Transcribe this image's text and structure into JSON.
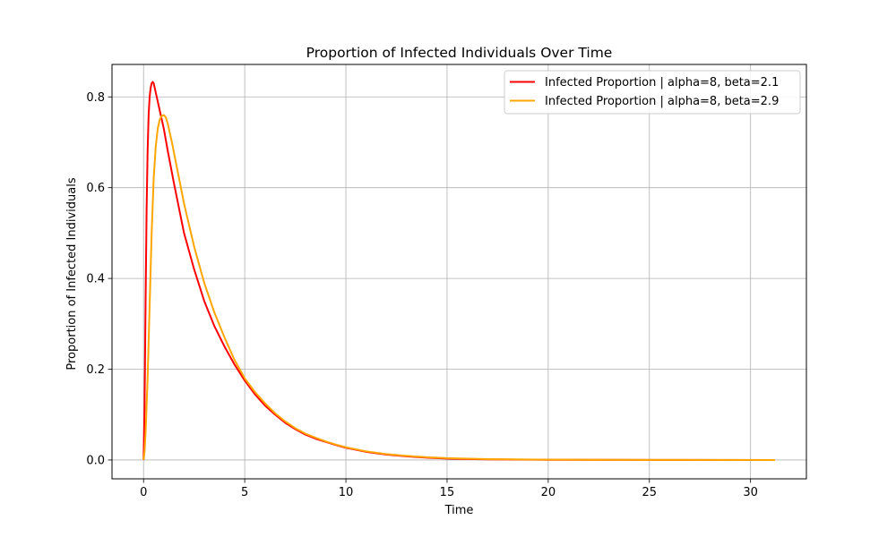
{
  "chart_data": {
    "type": "line",
    "title": "Proportion of Infected Individuals Over Time",
    "xlabel": "Time",
    "ylabel": "Proportion of Infected Individuals",
    "xlim": [
      -1.56,
      32.76
    ],
    "ylim": [
      -0.0415,
      0.8715
    ],
    "xticks": [
      0,
      5,
      10,
      15,
      20,
      25,
      30
    ],
    "yticks": [
      0.0,
      0.2,
      0.4,
      0.6,
      0.8
    ],
    "xtick_labels": [
      "0",
      "5",
      "10",
      "15",
      "20",
      "25",
      "30"
    ],
    "ytick_labels": [
      "0.0",
      "0.2",
      "0.4",
      "0.6",
      "0.8"
    ],
    "grid": true,
    "legend_position": "top-right",
    "series": [
      {
        "name": "Infected Proportion | alpha=8, beta=2.1",
        "color": "#ff0000",
        "x": [
          0,
          0.05,
          0.1,
          0.15,
          0.2,
          0.25,
          0.3,
          0.35,
          0.4,
          0.45,
          0.5,
          0.55,
          0.6,
          0.7,
          0.8,
          0.9,
          1.0,
          1.2,
          1.5,
          2.0,
          2.5,
          3.0,
          3.5,
          4.0,
          4.5,
          5.0,
          5.5,
          6.0,
          6.5,
          7.0,
          7.5,
          8.0,
          8.5,
          9.0,
          9.5,
          10.0,
          11.0,
          12.0,
          13.0,
          14.0,
          15.0,
          17.0,
          20.0,
          25.0,
          31.0
        ],
        "y": [
          0.0,
          0.12,
          0.35,
          0.55,
          0.68,
          0.76,
          0.8,
          0.82,
          0.83,
          0.833,
          0.83,
          0.82,
          0.81,
          0.79,
          0.77,
          0.75,
          0.73,
          0.68,
          0.61,
          0.5,
          0.42,
          0.35,
          0.295,
          0.25,
          0.21,
          0.175,
          0.145,
          0.12,
          0.1,
          0.082,
          0.068,
          0.056,
          0.047,
          0.04,
          0.033,
          0.027,
          0.018,
          0.012,
          0.008,
          0.005,
          0.003,
          0.0015,
          0.0005,
          0.0001,
          0.0
        ]
      },
      {
        "name": "Infected Proportion | alpha=8, beta=2.9",
        "color": "#ffa500",
        "x": [
          0,
          0.05,
          0.1,
          0.2,
          0.3,
          0.4,
          0.5,
          0.6,
          0.7,
          0.8,
          0.9,
          1.0,
          1.1,
          1.2,
          1.4,
          1.6,
          1.8,
          2.0,
          2.5,
          3.0,
          3.5,
          4.0,
          4.5,
          5.0,
          5.5,
          6.0,
          6.5,
          7.0,
          7.5,
          8.0,
          8.5,
          9.0,
          9.5,
          10.0,
          11.0,
          12.0,
          13.0,
          14.0,
          15.0,
          17.0,
          20.0,
          25.0,
          31.2
        ],
        "y": [
          0.0,
          0.02,
          0.06,
          0.18,
          0.34,
          0.5,
          0.62,
          0.69,
          0.73,
          0.75,
          0.758,
          0.76,
          0.755,
          0.74,
          0.7,
          0.655,
          0.61,
          0.565,
          0.47,
          0.39,
          0.325,
          0.27,
          0.22,
          0.18,
          0.15,
          0.125,
          0.103,
          0.085,
          0.07,
          0.058,
          0.049,
          0.041,
          0.034,
          0.028,
          0.019,
          0.013,
          0.009,
          0.006,
          0.004,
          0.002,
          0.0007,
          0.0002,
          0.0
        ]
      }
    ]
  }
}
